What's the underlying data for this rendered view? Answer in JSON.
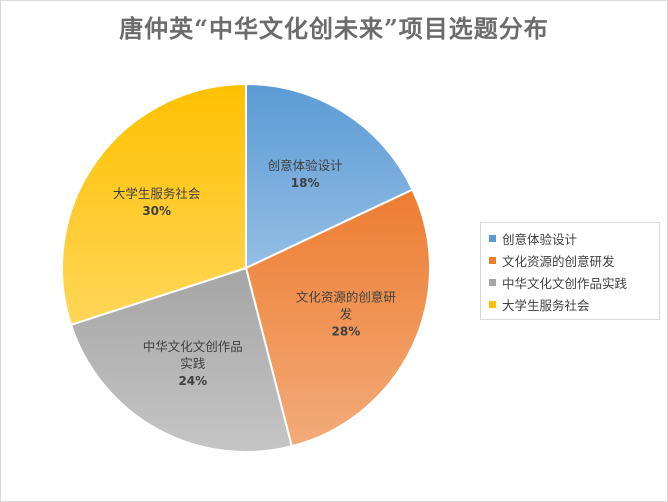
{
  "chart_data": {
    "type": "pie",
    "title": "唐仲英“中华文化创未来”项目选题分布",
    "categories": [
      "创意体验设计",
      "文化资源的创意研发",
      "中华文化文创作品实践",
      "大学生服务社会"
    ],
    "values": [
      18,
      28,
      24,
      30
    ],
    "value_labels": [
      "18%",
      "28%",
      "24%",
      "30%"
    ],
    "label_lines": [
      [
        "创意体验设计"
      ],
      [
        "文化资源的创意研",
        "发"
      ],
      [
        "中华文化文创作品",
        "实践"
      ],
      [
        "大学生服务社会"
      ]
    ],
    "colors": [
      "#5b9bd5",
      "#ed7d31",
      "#a5a5a5",
      "#ffc000"
    ],
    "legend": {
      "position": "right",
      "entries": [
        "创意体验设计",
        "文化资源的创意研发",
        "中华文化文创作品实践",
        "大学生服务社会"
      ]
    }
  }
}
